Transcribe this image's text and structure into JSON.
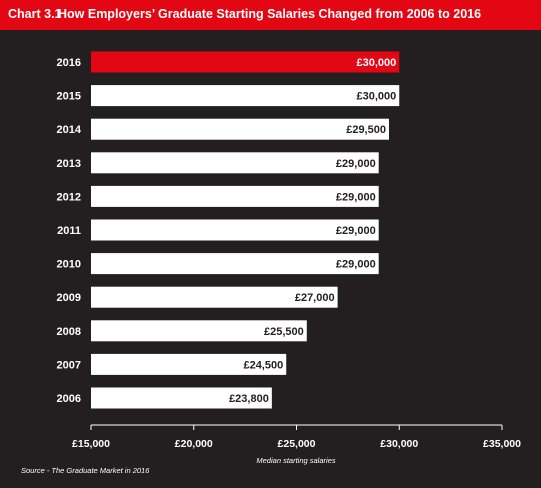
{
  "header": {
    "chart_number": "Chart 3.1",
    "title": "How Employers’ Graduate Starting Salaries Changed from 2006 to 2016"
  },
  "source": "Source - The Graduate Market in 2016",
  "colors": {
    "background": "#231f20",
    "accent": "#e30613",
    "bar": "#ffffff",
    "text": "#ffffff",
    "bar_label": "#231f20"
  },
  "chart_data": {
    "type": "bar",
    "orientation": "horizontal",
    "title": "How Employers’ Graduate Starting Salaries Changed from 2006 to 2016",
    "xlabel": "Median starting salaries",
    "ylabel": "",
    "xlim": [
      15000,
      35000
    ],
    "grid": false,
    "categories": [
      "2016",
      "2015",
      "2014",
      "2013",
      "2012",
      "2011",
      "2010",
      "2009",
      "2008",
      "2007",
      "2006"
    ],
    "values": [
      30000,
      30000,
      29500,
      29000,
      29000,
      29000,
      29000,
      27000,
      25500,
      24500,
      23800
    ],
    "value_labels": [
      "£30,000",
      "£30,000",
      "£29,500",
      "£29,000",
      "£29,000",
      "£29,000",
      "£29,000",
      "£27,000",
      "£25,500",
      "£24,500",
      "£23,800"
    ],
    "highlight_category": "2016",
    "x_ticks": [
      15000,
      20000,
      25000,
      30000,
      35000
    ],
    "x_tick_labels": [
      "£15,000",
      "£20,000",
      "£25,000",
      "£30,000",
      "£35,000"
    ]
  }
}
